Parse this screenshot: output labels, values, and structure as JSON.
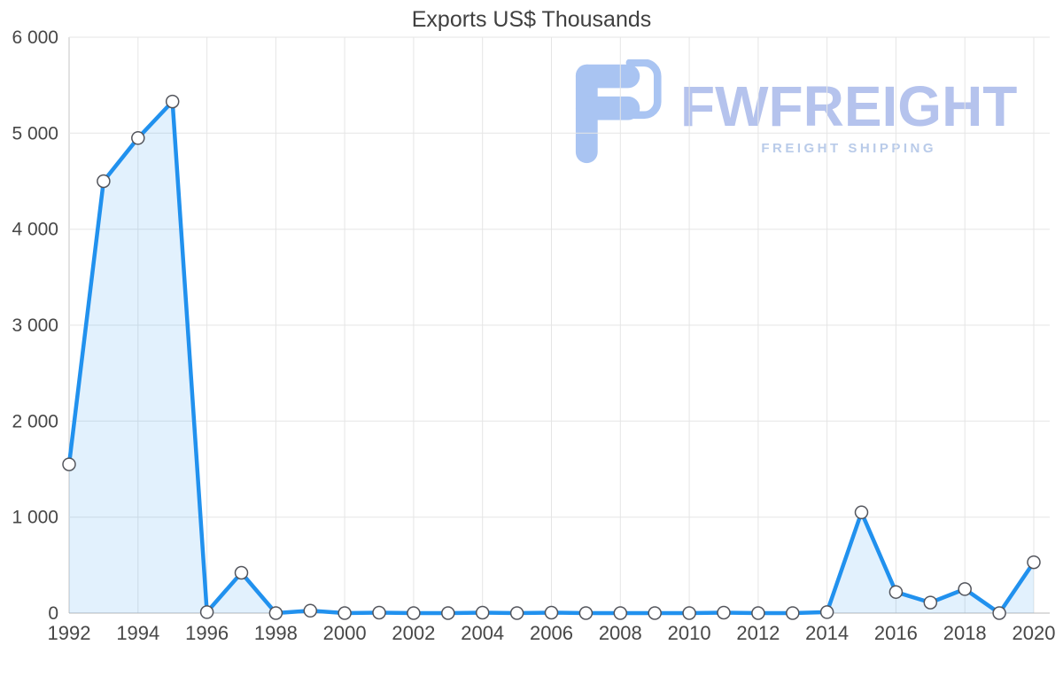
{
  "chart_data": {
    "type": "area",
    "title": "Exports US$ Thousands",
    "xlabel": "",
    "ylabel": "",
    "x": [
      1992,
      1993,
      1994,
      1995,
      1996,
      1997,
      1998,
      1999,
      2000,
      2001,
      2002,
      2003,
      2004,
      2005,
      2006,
      2007,
      2008,
      2009,
      2010,
      2011,
      2012,
      2013,
      2014,
      2015,
      2016,
      2017,
      2018,
      2019,
      2020
    ],
    "series": [
      {
        "name": "Exports",
        "values": [
          1550,
          4500,
          4950,
          5330,
          10,
          420,
          0,
          25,
          0,
          5,
          0,
          0,
          5,
          0,
          5,
          0,
          0,
          0,
          0,
          5,
          0,
          0,
          10,
          1050,
          220,
          110,
          250,
          0,
          530
        ]
      }
    ],
    "ylim": [
      0,
      6000
    ],
    "yticks": [
      0,
      1000,
      2000,
      3000,
      4000,
      5000,
      6000
    ],
    "ytick_labels": [
      "0",
      "1 000",
      "2 000",
      "3 000",
      "4 000",
      "5 000",
      "6 000"
    ],
    "xticks": [
      1992,
      1994,
      1996,
      1998,
      2000,
      2002,
      2004,
      2006,
      2008,
      2010,
      2012,
      2014,
      2016,
      2018,
      2020
    ],
    "xtick_labels": [
      "1992",
      "1994",
      "1996",
      "1998",
      "2000",
      "2002",
      "2004",
      "2006",
      "2008",
      "2010",
      "2012",
      "2014",
      "2016",
      "2018",
      "2020"
    ],
    "grid": true,
    "legend": "none"
  },
  "watermark": {
    "title": "FWFREIGHT",
    "subtitle": "FREIGHT SHIPPING"
  },
  "colors": {
    "line": "#2191ee",
    "area_fill": "rgba(33,145,238,0.13)",
    "grid": "#e5e5e5",
    "axis": "#c6c6c6",
    "zero_line": "#b9b9b9",
    "tick_text": "#474747",
    "title_text": "#404040",
    "marker_fill": "#ffffff",
    "marker_stroke": "#53555c",
    "watermark_text": "#b5c3ed",
    "watermark_subtext": "#b9cbe9",
    "watermark_icon": "#a9c4f2",
    "background": "#ffffff"
  }
}
